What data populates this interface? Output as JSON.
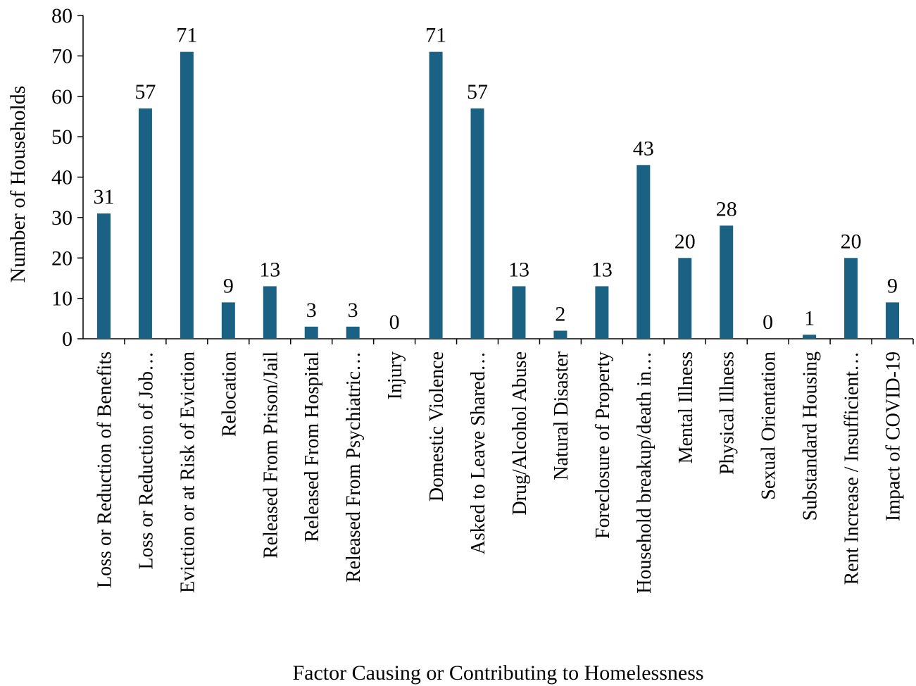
{
  "chart_data": {
    "type": "bar",
    "title": "",
    "xlabel": "Factor Causing or Contributing to Homelessness",
    "ylabel": "Number of Households",
    "ylim": [
      0,
      80
    ],
    "yticks": [
      0,
      10,
      20,
      30,
      40,
      50,
      60,
      70,
      80
    ],
    "grid": false,
    "legend": "none",
    "bar_color": "#1a6184",
    "categories": [
      "Loss or Reduction of Benefits",
      "Loss or Reduction of Job…",
      "Eviction or at Risk of Eviction",
      "Relocation",
      "Released From Prison/Jail",
      "Released From Hospital",
      "Released From Psychiatric…",
      "Injury",
      "Domestic Violence",
      "Asked to Leave Shared…",
      "Drug/Alcohol Abuse",
      "Natural Disaster",
      "Foreclosure of Property",
      "Household breakup/death in…",
      "Mental Illness",
      "Physical Illness",
      "Sexual Orientation",
      "Substandard Housing",
      "Rent Increase / Insufficient…",
      "Impact of COVID-19"
    ],
    "values": [
      31,
      57,
      71,
      9,
      13,
      3,
      3,
      0,
      71,
      57,
      13,
      2,
      13,
      43,
      20,
      28,
      0,
      1,
      20,
      9
    ]
  }
}
